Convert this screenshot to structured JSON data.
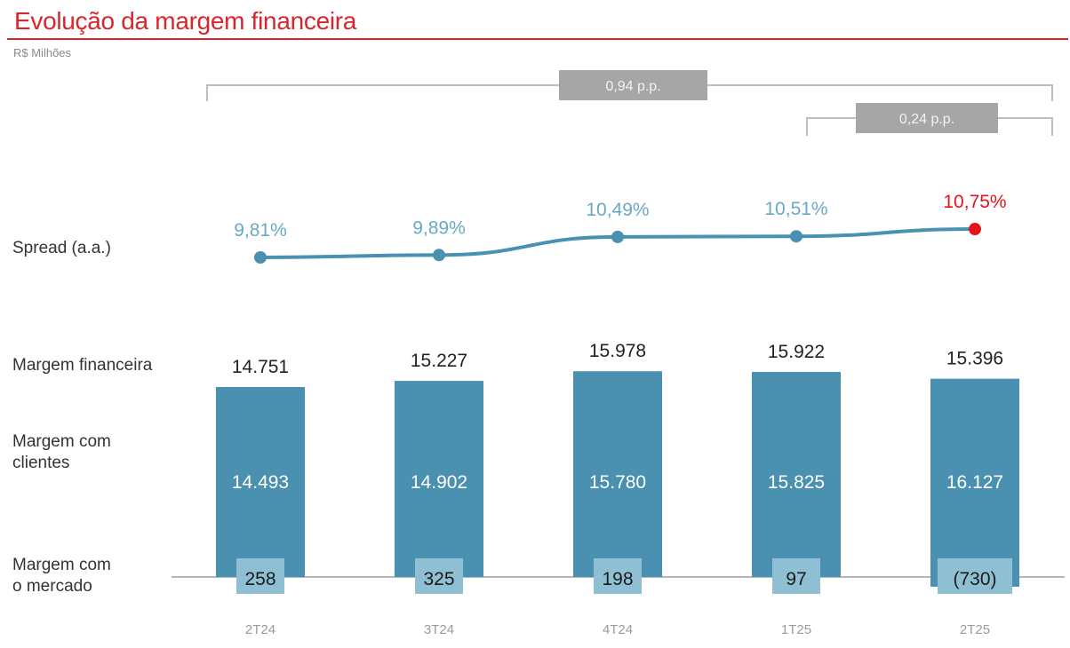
{
  "title": "Evolução da margem financeira",
  "unit": "R$ Milhões",
  "row_labels": {
    "spread": "Spread (a.a.)",
    "margin": "Margem financeira",
    "clients": "Margem com\nclientes",
    "market": "Margem com\no mercado"
  },
  "colors": {
    "title": "#d8262c",
    "bar": "#4a90b0",
    "market_box": "#8fbfd3",
    "line": "#4a90b0",
    "spread_text": "#6aa9c6",
    "highlight": "#e3141a",
    "bracket": "#bdbdbd",
    "bracket_box": "#a6a6a6"
  },
  "chart_data": {
    "type": "bar",
    "categories": [
      "2T24",
      "3T24",
      "4T24",
      "1T25",
      "2T25"
    ],
    "series": [
      {
        "name": "Margem financeira",
        "values": [
          14751,
          15227,
          15978,
          15922,
          15396
        ],
        "labels": [
          "14.751",
          "15.227",
          "15.978",
          "15.922",
          "15.396"
        ]
      },
      {
        "name": "Margem com clientes",
        "values": [
          14493,
          14902,
          15780,
          15825,
          16127
        ],
        "labels": [
          "14.493",
          "14.902",
          "15.780",
          "15.825",
          "16.127"
        ]
      },
      {
        "name": "Margem com o mercado",
        "values": [
          258,
          325,
          198,
          97,
          -730
        ],
        "labels": [
          "258",
          "325",
          "198",
          "97",
          "(730)"
        ]
      },
      {
        "name": "Spread (a.a.)",
        "values": [
          9.81,
          9.89,
          10.49,
          10.51,
          10.75
        ],
        "labels": [
          "9,81%",
          "9,89%",
          "10,49%",
          "10,51%",
          "10,75%"
        ]
      }
    ],
    "brackets": [
      {
        "label": "0,94 p.p.",
        "from": "2T24",
        "to": "2T25"
      },
      {
        "label": "0,24 p.p.",
        "from": "1T25",
        "to": "2T25"
      }
    ],
    "highlight_category": "2T25"
  }
}
